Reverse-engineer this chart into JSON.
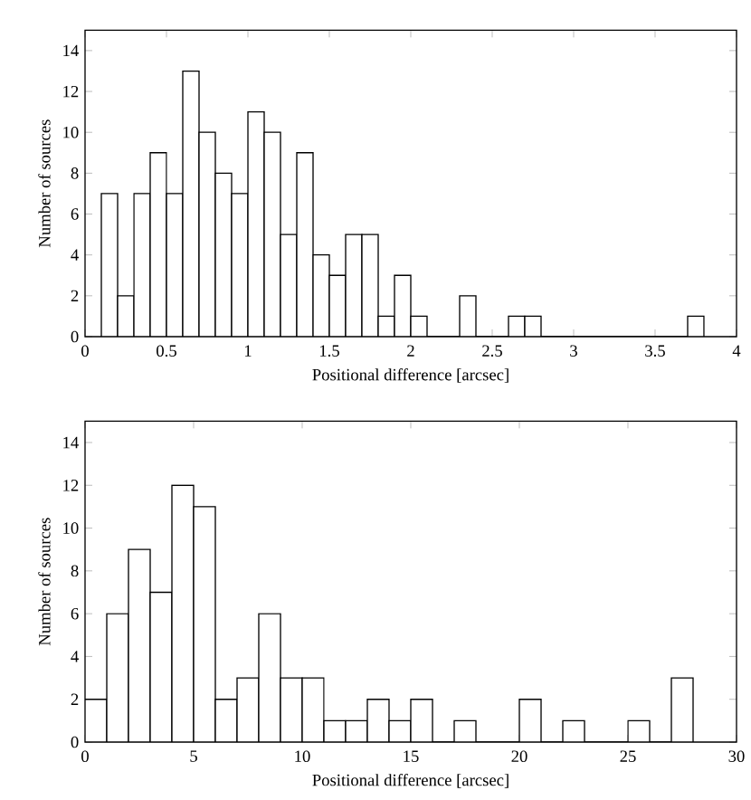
{
  "chart_data": [
    {
      "type": "histogram",
      "xlabel": "Positional difference [arcsec]",
      "ylabel": "Number of sources",
      "bins": [
        0.1,
        0.2,
        0.3,
        0.4,
        0.5,
        0.6,
        0.7,
        0.8,
        0.9,
        1.0,
        1.1,
        1.2,
        1.3,
        1.4,
        1.5,
        1.6,
        1.7,
        1.8,
        1.9,
        2.0,
        2.1,
        2.2,
        2.3,
        2.4,
        2.5,
        2.6,
        2.7,
        2.8,
        2.9,
        3.0,
        3.1,
        3.2,
        3.3,
        3.4,
        3.5,
        3.6,
        3.7,
        3.8
      ],
      "values": [
        7,
        2,
        7,
        9,
        7,
        13,
        10,
        8,
        7,
        11,
        10,
        5,
        9,
        4,
        3,
        5,
        5,
        1,
        3,
        1,
        0,
        0,
        2,
        0,
        0,
        1,
        1,
        0,
        0,
        0,
        0,
        0,
        0,
        0,
        0,
        0,
        1
      ],
      "color": "#ffffff",
      "xlim": [
        0,
        4
      ],
      "xticks": [
        0,
        0.5,
        1,
        1.5,
        2,
        2.5,
        3,
        3.5,
        4
      ],
      "ylim": [
        0,
        15
      ],
      "yticks": [
        0,
        2,
        4,
        6,
        8,
        10,
        12,
        14
      ]
    },
    {
      "type": "histogram",
      "xlabel": "Positional difference [arcsec]",
      "ylabel": "Number of sources",
      "bins": [
        0,
        1,
        2,
        3,
        4,
        5,
        6,
        7,
        8,
        9,
        10,
        11,
        12,
        13,
        14,
        15,
        16,
        17,
        18,
        19,
        20,
        21,
        22,
        23,
        24,
        25,
        26,
        27,
        28
      ],
      "values": [
        2,
        6,
        9,
        7,
        12,
        11,
        2,
        3,
        6,
        3,
        3,
        1,
        1,
        2,
        1,
        2,
        0,
        1,
        0,
        0,
        2,
        0,
        1,
        0,
        0,
        1,
        0,
        3
      ],
      "color": "#ffffff",
      "xlim": [
        0,
        30
      ],
      "xticks": [
        0,
        5,
        10,
        15,
        20,
        25,
        30
      ],
      "ylim": [
        0,
        15
      ],
      "yticks": [
        0,
        2,
        4,
        6,
        8,
        10,
        12,
        14
      ]
    }
  ]
}
